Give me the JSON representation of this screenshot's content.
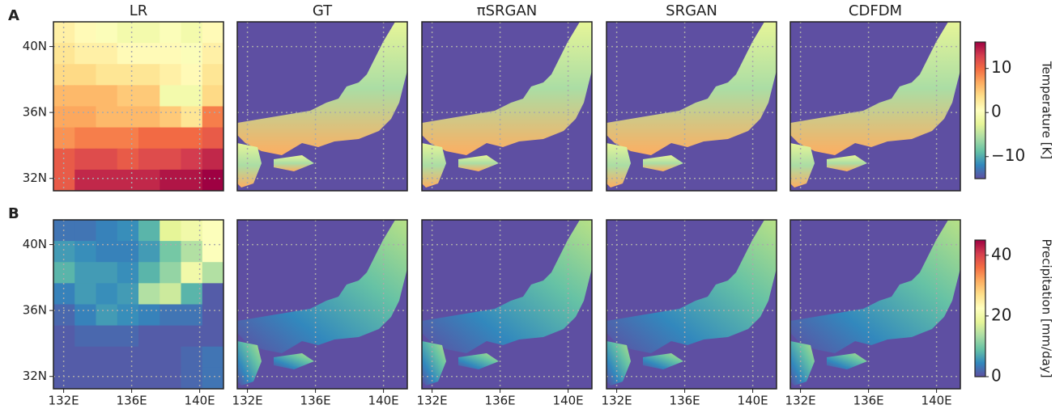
{
  "chart_data": {
    "type": "heatmap",
    "column_titles": [
      "LR",
      "GT",
      "πSRGAN",
      "SRGAN",
      "CDFDM"
    ],
    "xlim": [
      131.4,
      141.4
    ],
    "ylim": [
      31.25,
      41.5
    ],
    "xticks": [
      {
        "value": 132,
        "label": "132E"
      },
      {
        "value": 136,
        "label": "136E"
      },
      {
        "value": 140,
        "label": "140E"
      }
    ],
    "yticks": [
      {
        "value": 32,
        "label": "32N"
      },
      {
        "value": 36,
        "label": "36N"
      },
      {
        "value": 40,
        "label": "40N"
      }
    ],
    "grid": true,
    "colormap": "Spectral_r",
    "rows": [
      {
        "label": "A",
        "colorbar_label": "Temperature [K]",
        "clim": [
          -15,
          16
        ],
        "cticks": [
          {
            "value": -10,
            "label": "−10"
          },
          0,
          10
        ],
        "lr_values": [
          [
            2,
            1,
            0,
            -1,
            -1,
            0,
            -1,
            1
          ],
          [
            3,
            2,
            2,
            1,
            1,
            1,
            0,
            2
          ],
          [
            4,
            4,
            3,
            3,
            3,
            2,
            1,
            3
          ],
          [
            6,
            6,
            6,
            5,
            5,
            -1,
            -1,
            4
          ],
          [
            7,
            7,
            6,
            6,
            6,
            5,
            3,
            9
          ],
          [
            8,
            9,
            9,
            9,
            10,
            10,
            10,
            11
          ],
          [
            11,
            12,
            12,
            11,
            12,
            12,
            13,
            14
          ],
          [
            11,
            14,
            14,
            14,
            14,
            15,
            15,
            16
          ]
        ]
      },
      {
        "label": "B",
        "colorbar_label": "Precipitation [mm/day]",
        "clim": [
          0,
          45
        ],
        "cticks": [
          0,
          20,
          40
        ],
        "lr_values": [
          [
            3,
            3,
            4,
            5,
            8,
            18,
            20,
            22
          ],
          [
            6,
            5,
            4,
            4,
            6,
            10,
            14,
            22
          ],
          [
            8,
            6,
            6,
            5,
            8,
            12,
            20,
            14
          ],
          [
            4,
            6,
            5,
            6,
            14,
            16,
            8,
            1
          ],
          [
            2,
            4,
            6,
            5,
            4,
            3,
            3,
            1
          ],
          [
            1,
            2,
            2,
            2,
            1,
            1,
            1,
            1
          ],
          [
            1,
            1,
            1,
            1,
            1,
            1,
            2,
            3
          ],
          [
            1,
            1,
            1,
            1,
            1,
            1,
            2,
            3
          ]
        ]
      }
    ]
  }
}
